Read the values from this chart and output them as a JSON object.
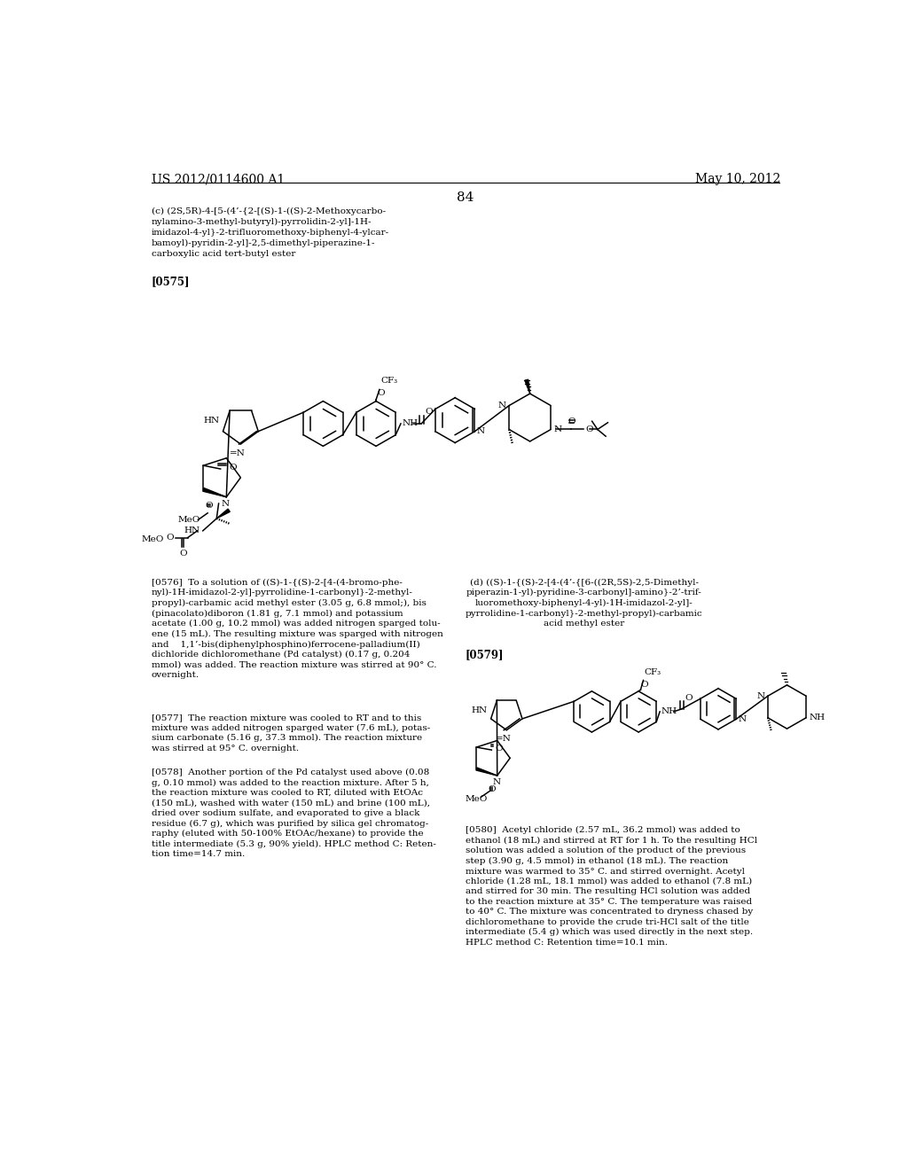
{
  "background_color": "#ffffff",
  "header_left": "US 2012/0114600 A1",
  "header_right": "May 10, 2012",
  "page_number": "84",
  "ref_0575": "[0575]",
  "ref_0576_text": "[0576]  To a solution of ((S)-1-{(S)-2-[4-(4-bromo-phe-\nnyl)-1H-imidazol-2-yl]-pyrrolidine-1-carbonyl}-2-methyl-\npropyl)-carbamic acid methyl ester (3.05 g, 6.8 mmol;), bis\n(pinacolato)diboron (1.81 g, 7.1 mmol) and potassium\nacetate (1.00 g, 10.2 mmol) was added nitrogen sparged tolu-\nene (15 mL). The resulting mixture was sparged with nitrogen\nand    1,1’-bis(diphenylphosphino)ferrocene-palladium(II)\ndichloride dichloromethane (Pd catalyst) (0.17 g, 0.204\nmmol) was added. The reaction mixture was stirred at 90° C.\novernight.",
  "ref_0577_text": "[0577]  The reaction mixture was cooled to RT and to this\nmixture was added nitrogen sparged water (7.6 mL), potas-\nsium carbonate (5.16 g, 37.3 mmol). The reaction mixture\nwas stirred at 95° C. overnight.",
  "ref_0578_text": "[0578]  Another portion of the Pd catalyst used above (0.08\ng, 0.10 mmol) was added to the reaction mixture. After 5 h,\nthe reaction mixture was cooled to RT, diluted with EtOAc\n(150 mL), washed with water (150 mL) and brine (100 mL),\ndried over sodium sulfate, and evaporated to give a black\nresidue (6.7 g), which was purified by silica gel chromatog-\nraphy (eluted with 50-100% EtOAc/hexane) to provide the\ntitle intermediate (5.3 g, 90% yield). HPLC method C: Reten-\ntion time=14.7 min.",
  "ref_d_label_line1": "(d) ((S)-1-{(S)-2-[4-(4’-{[6-((2R,5S)-2,5-Dimethyl-",
  "ref_d_label_line2": "piperazin-1-yl)-pyridine-3-carbonyl]-amino}-2’-trif-",
  "ref_d_label_line3": "luoromethoxy-biphenyl-4-yl)-1H-imidazol-2-yl]-",
  "ref_d_label_line4": "pyrrolidine-1-carbonyl}-2-methyl-propyl)-carbamic",
  "ref_d_label_line5": "acid methyl ester",
  "ref_0579": "[0579]",
  "ref_0580_text": "[0580]  Acetyl chloride (2.57 mL, 36.2 mmol) was added to\nethanol (18 mL) and stirred at RT for 1 h. To the resulting HCl\nsolution was added a solution of the product of the previous\nstep (3.90 g, 4.5 mmol) in ethanol (18 mL). The reaction\nmixture was warmed to 35° C. and stirred overnight. Acetyl\nchloride (1.28 mL, 18.1 mmol) was added to ethanol (7.8 mL)\nand stirred for 30 min. The resulting HCl solution was added\nto the reaction mixture at 35° C. The temperature was raised\nto 40° C. The mixture was concentrated to dryness chased by\ndichloromethane to provide the crude tri-HCl salt of the title\nintermediate (5.4 g) which was used directly in the next step.\nHPLC method C: Retention time=10.1 min."
}
